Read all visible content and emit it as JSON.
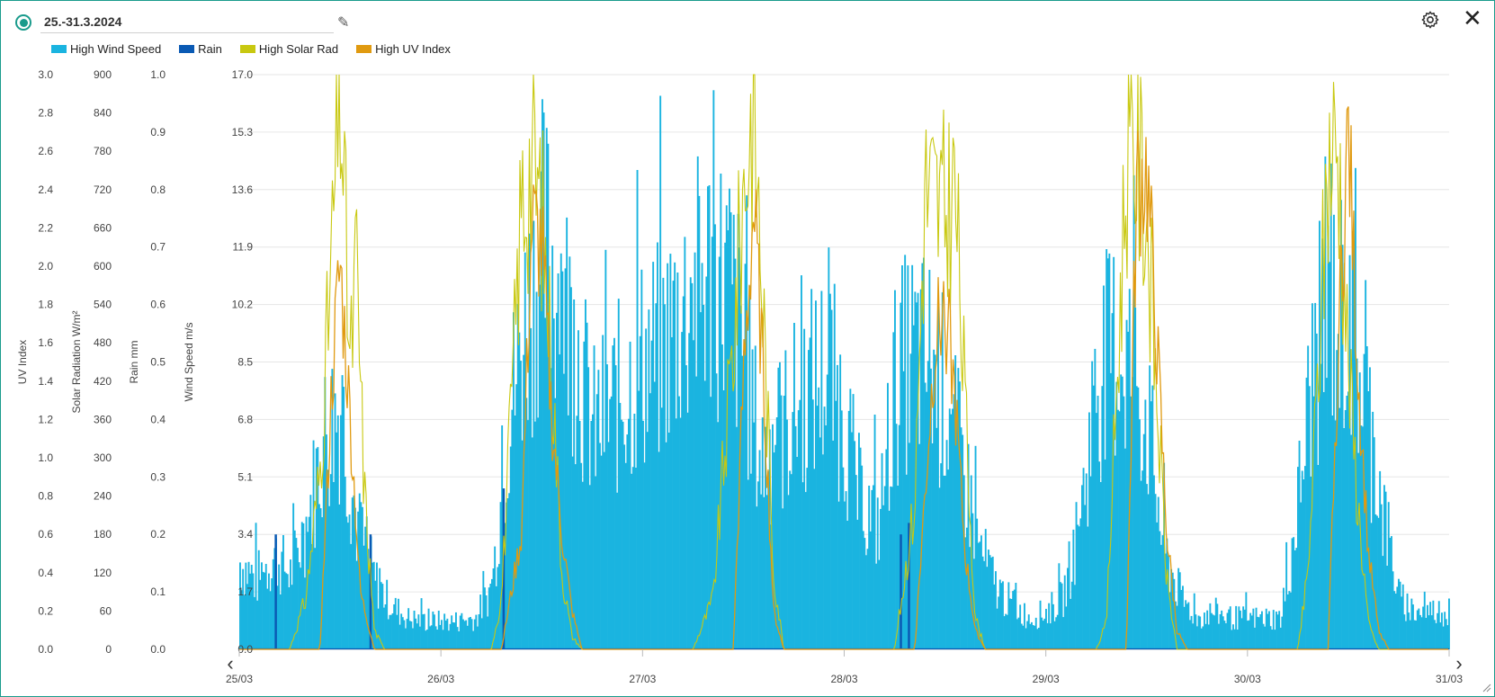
{
  "header": {
    "title": "25.-31.3.2024",
    "edit_icon": "pencil-icon",
    "settings_icon": "gear-icon",
    "close_icon": "close-icon",
    "close_glyph": "✕"
  },
  "nav": {
    "prev_glyph": "‹",
    "next_glyph": "›"
  },
  "chart_data": {
    "type": "area",
    "legend_placement": "top-left",
    "grid": true,
    "colors": {
      "wind": "#1ab4e0",
      "rain": "#0a5ab4",
      "solar": "#c8c810",
      "uv": "#e09a10"
    },
    "legend": [
      "High Wind Speed",
      "Rain",
      "High Solar Rad",
      "High UV Index"
    ],
    "x": {
      "start": "25/03",
      "end": "31/03",
      "ticks": [
        "25/03",
        "26/03",
        "27/03",
        "28/03",
        "29/03",
        "30/03",
        "31/03"
      ]
    },
    "axes": [
      {
        "label": "UV Index",
        "min": 0,
        "max": 3.0,
        "ticks": [
          "0.0",
          "0.2",
          "0.4",
          "0.6",
          "0.8",
          "1.0",
          "1.2",
          "1.4",
          "1.6",
          "1.8",
          "2.0",
          "2.2",
          "2.4",
          "2.6",
          "2.8",
          "3.0"
        ]
      },
      {
        "label": "Solar Radiation W/m²",
        "min": 0,
        "max": 900,
        "ticks": [
          "0",
          "60",
          "120",
          "180",
          "240",
          "300",
          "360",
          "420",
          "480",
          "540",
          "600",
          "660",
          "720",
          "780",
          "840",
          "900"
        ]
      },
      {
        "label": "Rain mm",
        "min": 0,
        "max": 1.0,
        "ticks": [
          "0.0",
          "0.1",
          "0.2",
          "0.3",
          "0.4",
          "0.5",
          "0.6",
          "0.7",
          "0.8",
          "0.9",
          "1.0"
        ]
      },
      {
        "label": "Wind Speed m/s",
        "min": 0,
        "max": 17.0,
        "ticks": [
          "0.0",
          "1.7",
          "3.4",
          "5.1",
          "6.8",
          "8.5",
          "10.2",
          "11.9",
          "13.6",
          "15.3",
          "17.0"
        ]
      }
    ],
    "series": [
      {
        "name": "High Wind Speed",
        "unit": "m/s",
        "x_days": [
          0,
          0.08,
          0.17,
          0.25,
          0.33,
          0.42,
          0.5,
          0.58,
          0.67,
          0.75,
          0.83,
          0.92,
          1,
          1.08,
          1.17,
          1.25,
          1.33,
          1.42,
          1.5,
          1.58,
          1.67,
          1.75,
          1.83,
          1.92,
          2,
          2.08,
          2.17,
          2.25,
          2.33,
          2.42,
          2.5,
          2.58,
          2.67,
          2.75,
          2.83,
          2.92,
          3,
          3.08,
          3.17,
          3.25,
          3.33,
          3.42,
          3.5,
          3.58,
          3.67,
          3.75,
          3.83,
          3.92,
          4,
          4.08,
          4.17,
          4.25,
          4.33,
          4.42,
          4.5,
          4.58,
          4.67,
          4.75,
          4.83,
          4.92,
          5,
          5.08,
          5.17,
          5.25,
          5.33,
          5.42,
          5.5,
          5.58,
          5.67,
          5.75,
          5.83,
          5.92,
          6
        ],
        "values": [
          2.8,
          2.2,
          3.0,
          2.4,
          4.0,
          6.8,
          7.8,
          4.0,
          2.2,
          1.4,
          1.0,
          0.9,
          0.9,
          0.9,
          1.0,
          2.0,
          7.2,
          10.6,
          12.8,
          11.8,
          9.6,
          7.0,
          7.6,
          8.4,
          9.2,
          9.4,
          10.6,
          11.2,
          12.0,
          11.6,
          9.6,
          6.0,
          6.8,
          7.6,
          8.4,
          9.0,
          7.2,
          4.6,
          4.0,
          8.6,
          9.4,
          9.2,
          8.0,
          6.0,
          3.2,
          2.0,
          1.4,
          1.0,
          1.2,
          1.6,
          4.2,
          8.6,
          9.6,
          9.2,
          7.4,
          3.2,
          1.6,
          1.0,
          1.2,
          1.0,
          1.0,
          1.0,
          1.0,
          4.8,
          9.4,
          10.8,
          10.4,
          8.0,
          4.4,
          1.6,
          1.2,
          1.2,
          1.2
        ]
      },
      {
        "name": "Rain",
        "unit": "mm",
        "x_days": [
          0.18,
          0.65,
          1.31,
          3.28,
          3.32
        ],
        "values": [
          0.2,
          0.2,
          0.28,
          0.2,
          0.22
        ]
      },
      {
        "name": "High Solar Rad",
        "unit": "W/m²",
        "x_days": [
          0,
          0.25,
          0.33,
          0.4,
          0.46,
          0.5,
          0.55,
          0.58,
          0.62,
          0.67,
          0.72,
          1.25,
          1.3,
          1.35,
          1.4,
          1.45,
          1.5,
          1.55,
          1.6,
          1.65,
          1.7,
          2.25,
          2.35,
          2.45,
          2.5,
          2.55,
          2.6,
          2.65,
          2.7,
          3.25,
          3.35,
          3.4,
          3.45,
          3.5,
          3.55,
          3.6,
          3.65,
          3.7,
          4.25,
          4.3,
          4.35,
          4.4,
          4.45,
          4.5,
          4.55,
          4.6,
          4.65,
          4.7,
          5.25,
          5.3,
          5.35,
          5.4,
          5.45,
          5.5,
          5.55,
          5.6,
          5.65,
          5.7,
          6
        ],
        "values": [
          0,
          0,
          80,
          280,
          620,
          900,
          430,
          610,
          250,
          30,
          0,
          0,
          80,
          380,
          700,
          760,
          690,
          450,
          120,
          20,
          0,
          0,
          80,
          480,
          720,
          860,
          520,
          120,
          0,
          0,
          230,
          720,
          700,
          680,
          720,
          380,
          50,
          0,
          0,
          40,
          400,
          770,
          780,
          690,
          400,
          110,
          0,
          0,
          0,
          120,
          430,
          770,
          790,
          450,
          220,
          40,
          0,
          0,
          0
        ]
      },
      {
        "name": "High UV Index",
        "unit": "",
        "x_days": [
          0,
          0.4,
          0.46,
          0.5,
          0.55,
          0.6,
          0.67,
          1.3,
          1.4,
          1.45,
          1.5,
          1.55,
          1.6,
          1.65,
          1.7,
          2.45,
          2.5,
          2.55,
          2.6,
          2.65,
          2.7,
          3.35,
          3.4,
          3.45,
          3.5,
          3.55,
          3.6,
          3.65,
          3.7,
          4.4,
          4.45,
          4.5,
          4.55,
          4.6,
          4.65,
          4.7,
          5.4,
          5.45,
          5.5,
          5.55,
          5.6,
          5.65,
          5.7,
          6
        ],
        "values": [
          0,
          0,
          1.4,
          2.0,
          1.2,
          0.3,
          0,
          0,
          0.6,
          2.2,
          2.1,
          1.2,
          0.6,
          0.2,
          0,
          0,
          1.4,
          2.3,
          1.4,
          0.2,
          0,
          0,
          0.8,
          1.6,
          1.8,
          1.3,
          0.5,
          0.1,
          0,
          0,
          2.4,
          2.5,
          1.6,
          0.6,
          0.1,
          0,
          0,
          1.6,
          2.7,
          1.4,
          0.5,
          0.1,
          0,
          0
        ]
      }
    ]
  }
}
